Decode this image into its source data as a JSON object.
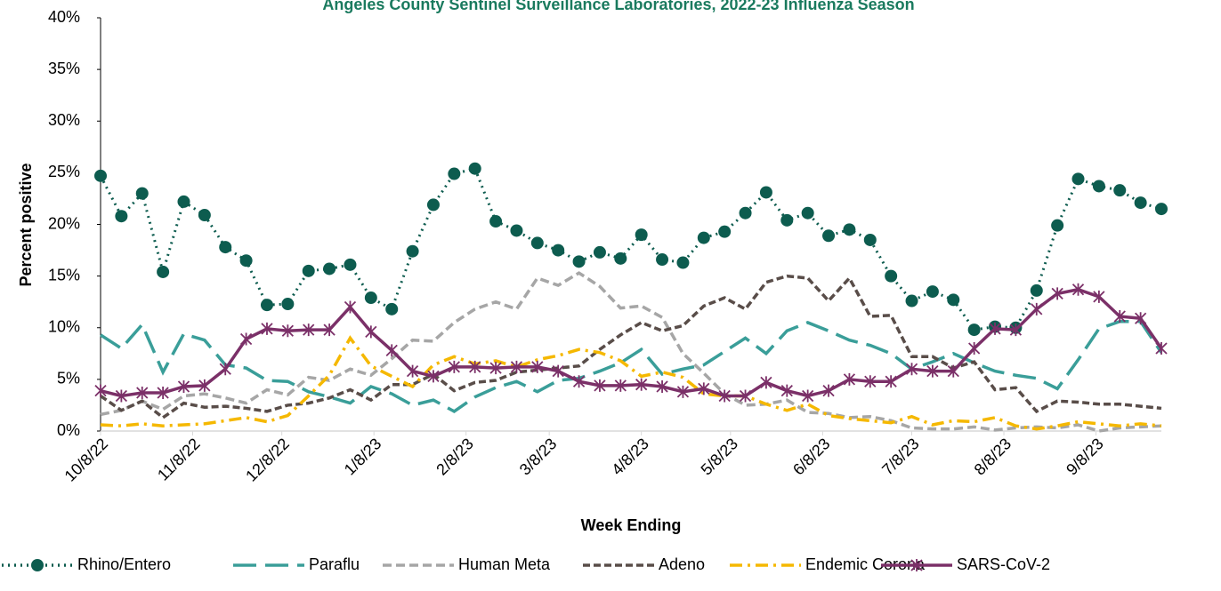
{
  "chart_data": {
    "type": "line",
    "title": "Angeles County Sentinel Surveillance Laboratories, 2022-23 Influenza Season",
    "x_label": "Week Ending",
    "y_label": "Percent positive",
    "x": [
      "2022-10-08",
      "2022-10-15",
      "2022-10-22",
      "2022-10-29",
      "2022-11-05",
      "2022-11-12",
      "2022-11-19",
      "2022-11-26",
      "2022-12-03",
      "2022-12-10",
      "2022-12-17",
      "2022-12-24",
      "2022-12-31",
      "2023-01-07",
      "2023-01-14",
      "2023-01-21",
      "2023-01-28",
      "2023-02-04",
      "2023-02-11",
      "2023-02-18",
      "2023-02-25",
      "2023-03-04",
      "2023-03-11",
      "2023-03-18",
      "2023-03-25",
      "2023-04-01",
      "2023-04-08",
      "2023-04-15",
      "2023-04-22",
      "2023-04-29",
      "2023-05-06",
      "2023-05-13",
      "2023-05-20",
      "2023-05-27",
      "2023-06-03",
      "2023-06-10",
      "2023-06-17",
      "2023-06-24",
      "2023-07-01",
      "2023-07-08",
      "2023-07-15",
      "2023-07-22",
      "2023-07-29",
      "2023-08-05",
      "2023-08-12",
      "2023-08-19",
      "2023-08-26",
      "2023-09-02",
      "2023-09-09",
      "2023-09-16",
      "2023-09-23",
      "2023-09-30"
    ],
    "xlim": [
      "2022-10-08",
      "2023-09-30"
    ],
    "xticks": [
      {
        "value": "2022-10-08",
        "label": "10/8/22"
      },
      {
        "value": "2022-11-08",
        "label": "11/8/22"
      },
      {
        "value": "2022-12-08",
        "label": "12/8/22"
      },
      {
        "value": "2023-01-08",
        "label": "1/8/23"
      },
      {
        "value": "2023-02-08",
        "label": "2/8/23"
      },
      {
        "value": "2023-03-08",
        "label": "3/8/23"
      },
      {
        "value": "2023-04-08",
        "label": "4/8/23"
      },
      {
        "value": "2023-05-08",
        "label": "5/8/23"
      },
      {
        "value": "2023-06-08",
        "label": "6/8/23"
      },
      {
        "value": "2023-07-08",
        "label": "7/8/23"
      },
      {
        "value": "2023-08-08",
        "label": "8/8/23"
      },
      {
        "value": "2023-09-08",
        "label": "9/8/23"
      }
    ],
    "ylim": [
      0,
      40
    ],
    "yticks": [
      {
        "value": 0,
        "label": "0%"
      },
      {
        "value": 5,
        "label": "5%"
      },
      {
        "value": 10,
        "label": "10%"
      },
      {
        "value": 15,
        "label": "15%"
      },
      {
        "value": 20,
        "label": "20%"
      },
      {
        "value": 25,
        "label": "25%"
      },
      {
        "value": 30,
        "label": "30%"
      },
      {
        "value": 35,
        "label": "35%"
      },
      {
        "value": 40,
        "label": "40%"
      }
    ],
    "series": [
      {
        "name": "Rhino/Entero",
        "color": "#0d5c4f",
        "dash": "2 5",
        "marker": "circle",
        "values": [
          24.7,
          20.8,
          23,
          15.4,
          22.2,
          20.9,
          17.8,
          16.5,
          12.2,
          12.3,
          15.5,
          15.7,
          16.1,
          12.9,
          11.8,
          17.4,
          21.9,
          24.9,
          25.4,
          20.3,
          19.4,
          18.2,
          17.5,
          16.4,
          17.3,
          16.7,
          19,
          16.6,
          16.3,
          18.7,
          19.3,
          21.1,
          23.1,
          20.4,
          21.1,
          18.9,
          19.5,
          18.5,
          15,
          12.6,
          13.5,
          12.7,
          9.8,
          10.1,
          10,
          13.6,
          19.9,
          24.4,
          23.7,
          23.3,
          22.1,
          21.5
        ]
      },
      {
        "name": "Paraflu",
        "color": "#3a9e99",
        "dash": "26 10",
        "values": [
          9.3,
          8,
          10.3,
          5.7,
          9.4,
          8.8,
          6.4,
          6.1,
          4.9,
          4.8,
          3.8,
          3.3,
          2.7,
          4.3,
          3.6,
          2.5,
          3,
          1.9,
          3.3,
          4.2,
          4.8,
          3.8,
          4.9,
          5.1,
          5.8,
          6.6,
          7.9,
          5.5,
          6,
          6.4,
          7.7,
          9,
          7.5,
          9.7,
          10.5,
          9.7,
          8.8,
          8.3,
          7.5,
          6,
          6.7,
          7.5,
          6.6,
          5.8,
          5.4,
          5.1,
          4.1,
          6.9,
          9.9,
          10.6,
          10.6,
          7.6
        ]
      },
      {
        "name": "Human Meta",
        "color": "#a6a6a6",
        "dash": "10 5",
        "values": [
          1.6,
          2,
          2.9,
          2.1,
          3.4,
          3.6,
          3.2,
          2.7,
          4,
          3.5,
          5.2,
          4.9,
          6,
          5.4,
          7,
          8.8,
          8.7,
          10.5,
          11.8,
          12.5,
          11.8,
          14.8,
          14.1,
          15.3,
          14,
          11.9,
          12.1,
          11,
          7.5,
          5.6,
          3.6,
          2.5,
          2.6,
          3,
          1.8,
          1.7,
          1.3,
          1.4,
          1,
          0.3,
          0.2,
          0.2,
          0.4,
          0.1,
          0.3,
          0.4,
          0.3,
          0.6,
          0,
          0.3,
          0.4,
          0.5
        ]
      },
      {
        "name": "Adeno",
        "color": "#594d49",
        "dash": "8 4",
        "values": [
          3.4,
          2,
          2.9,
          1.3,
          2.7,
          2.3,
          2.4,
          2.2,
          1.9,
          2.5,
          2.7,
          3.2,
          4,
          3,
          4.5,
          4.5,
          5.5,
          3.9,
          4.7,
          4.9,
          5.7,
          5.9,
          6.1,
          6.3,
          7.9,
          9.3,
          10.5,
          9.7,
          10.2,
          12.1,
          12.9,
          11.8,
          14.4,
          15,
          14.8,
          12.6,
          14.8,
          11.1,
          11.2,
          7.2,
          7.2,
          6.1,
          6.7,
          4,
          4.2,
          1.9,
          2.9,
          2.8,
          2.6,
          2.6,
          2.4,
          2.2
        ]
      },
      {
        "name": "Endemic Corona",
        "color": "#f5b800",
        "dash": "14 6 3 6",
        "values": [
          0.6,
          0.5,
          0.7,
          0.5,
          0.6,
          0.7,
          1,
          1.3,
          0.9,
          1.5,
          3.4,
          5.4,
          9,
          6.3,
          5.3,
          4.3,
          6.4,
          7.2,
          6.5,
          6.8,
          6.2,
          6.9,
          7.3,
          7.9,
          7.6,
          6.8,
          5.3,
          5.7,
          5.2,
          3.6,
          3.4,
          3.4,
          2.6,
          2,
          2.6,
          1.5,
          1.2,
          1,
          0.8,
          1.4,
          0.6,
          1,
          0.9,
          1.3,
          0.5,
          0.2,
          0.5,
          0.9,
          0.7,
          0.5,
          0.7,
          0.5
        ]
      },
      {
        "name": "SARS-CoV-2",
        "color": "#7b3068",
        "marker": "star",
        "values": [
          3.9,
          3.4,
          3.7,
          3.7,
          4.3,
          4.4,
          6,
          8.9,
          9.9,
          9.7,
          9.8,
          9.8,
          12,
          9.6,
          7.8,
          5.8,
          5.3,
          6.2,
          6.2,
          6.1,
          6.2,
          6.2,
          5.8,
          4.8,
          4.4,
          4.4,
          4.5,
          4.3,
          3.8,
          4.1,
          3.4,
          3.4,
          4.7,
          3.9,
          3.4,
          3.9,
          5,
          4.8,
          4.8,
          6,
          5.8,
          5.8,
          8,
          9.9,
          9.8,
          11.8,
          13.3,
          13.7,
          13,
          11.1,
          10.9,
          8
        ]
      }
    ]
  }
}
